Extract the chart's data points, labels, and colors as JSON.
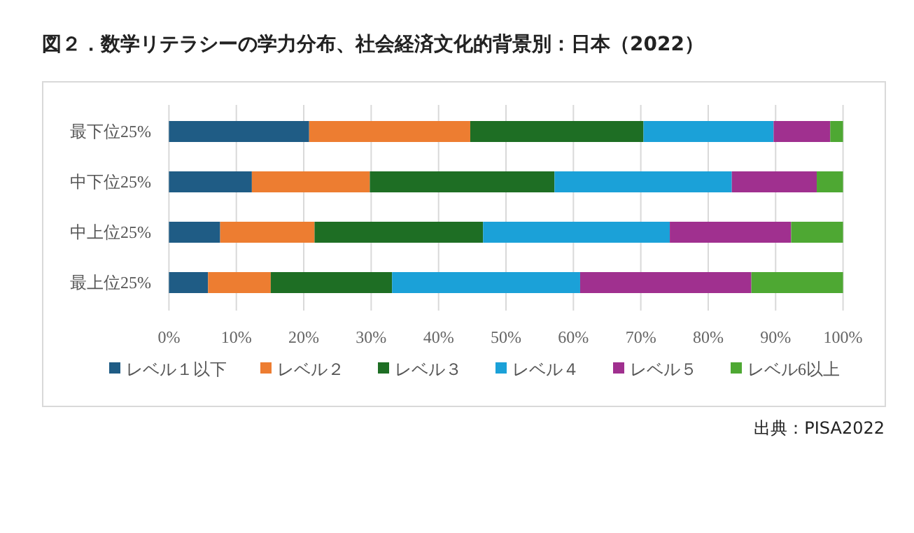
{
  "chart_data": {
    "type": "bar",
    "orientation": "horizontal",
    "stacked": true,
    "title": "図２．数学リテラシーの学力分布、社会経済文化的背景別：日本（2022）",
    "categories": [
      "最下位25%",
      "中下位25%",
      "中上位25%",
      "最上位25%"
    ],
    "series": [
      {
        "name": "レベル１以下",
        "color": "#1f5c85",
        "values": [
          20.8,
          12.3,
          7.6,
          5.8
        ]
      },
      {
        "name": "レベル２",
        "color": "#ed7d31",
        "values": [
          23.9,
          17.5,
          14.0,
          9.3
        ]
      },
      {
        "name": "レベル３",
        "color": "#1e6e24",
        "values": [
          25.7,
          27.4,
          25.0,
          18.0
        ]
      },
      {
        "name": "レベル４",
        "color": "#1ba1d8",
        "values": [
          19.3,
          26.3,
          27.7,
          27.9
        ]
      },
      {
        "name": "レベル５",
        "color": "#a0308f",
        "values": [
          8.4,
          12.6,
          18.0,
          25.4
        ]
      },
      {
        "name": "レベル6以上",
        "color": "#4ea833",
        "values": [
          1.9,
          3.9,
          7.7,
          13.6
        ]
      }
    ],
    "xlim": [
      0,
      100
    ],
    "xticks": [
      {
        "value": 0,
        "label": "0%"
      },
      {
        "value": 10,
        "label": "10%"
      },
      {
        "value": 20,
        "label": "20%"
      },
      {
        "value": 30,
        "label": "30%"
      },
      {
        "value": 40,
        "label": "40%"
      },
      {
        "value": 50,
        "label": "50%"
      },
      {
        "value": 60,
        "label": "60%"
      },
      {
        "value": 70,
        "label": "70%"
      },
      {
        "value": 80,
        "label": "80%"
      },
      {
        "value": 90,
        "label": "90%"
      },
      {
        "value": 100,
        "label": "100%"
      }
    ],
    "grid": "x",
    "legend": "bottom",
    "annotations": [
      "出典：PISA2022"
    ]
  }
}
